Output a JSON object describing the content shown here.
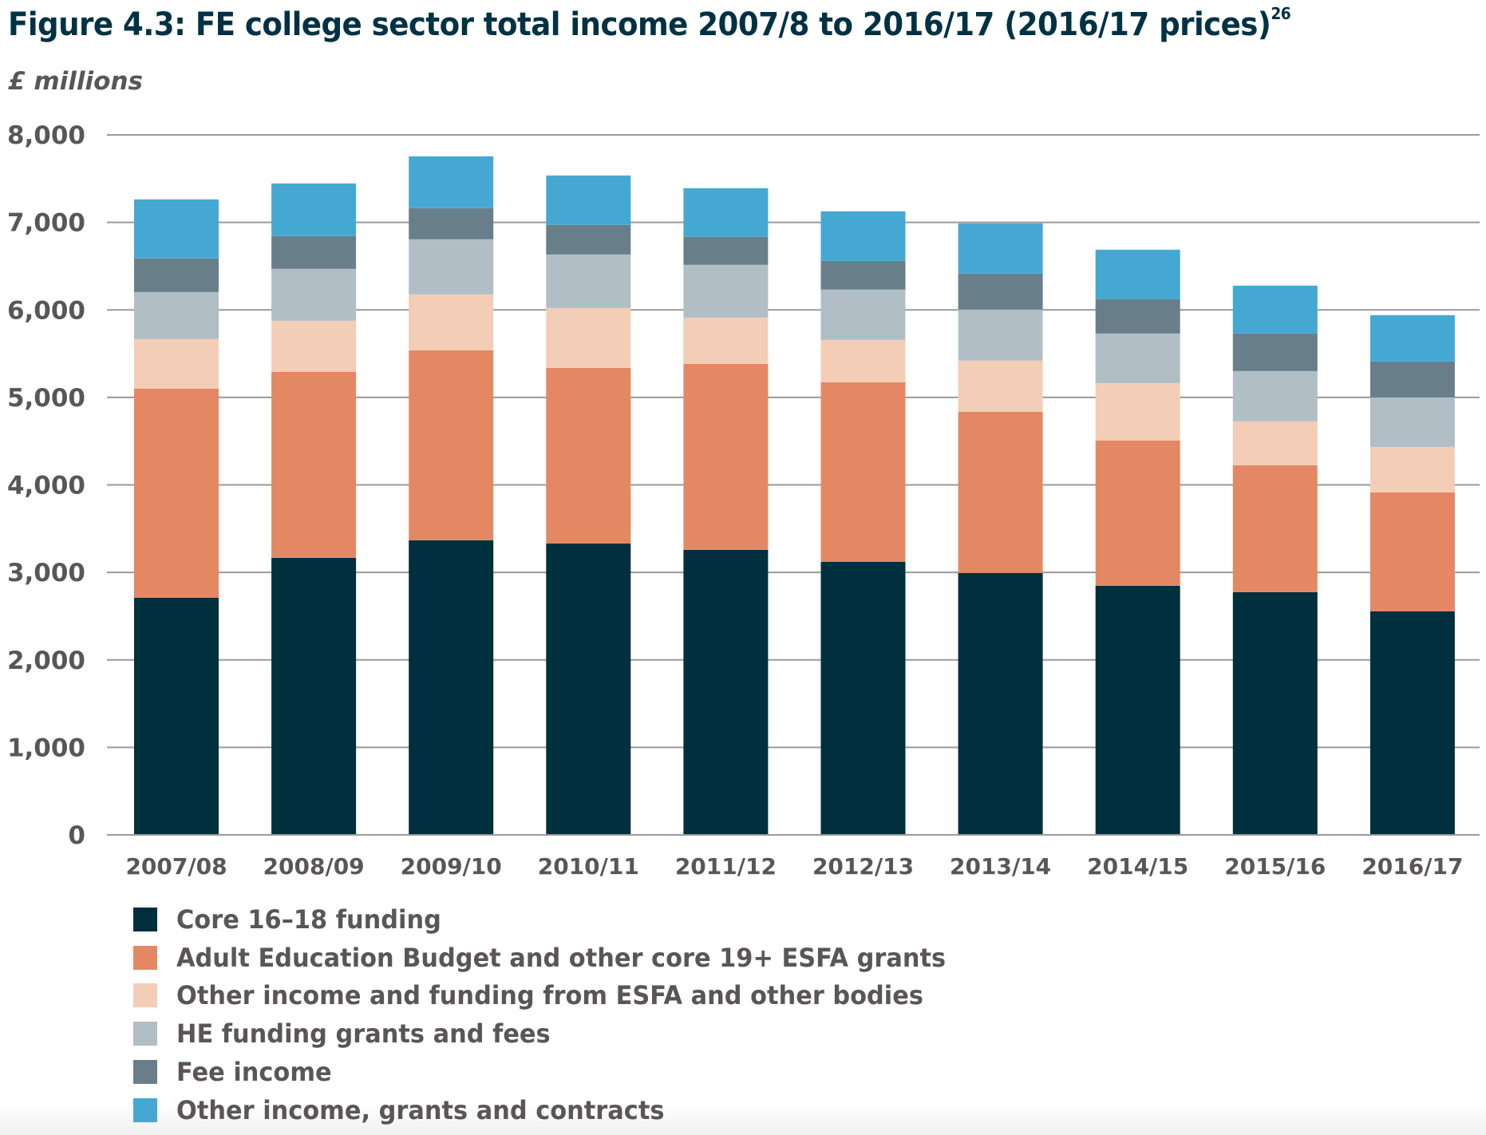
{
  "header": {
    "title": "Figure 4.3: FE college sector total income 2007/8 to 2016/17 (2016/17 prices)",
    "footnote": "26",
    "unit_label": "£ millions"
  },
  "chart_data": {
    "type": "bar",
    "stacked": true,
    "title": "Figure 4.3: FE college sector total income 2007/8 to 2016/17 (2016/17 prices)",
    "xlabel": "",
    "ylabel": "£ millions",
    "ylim": [
      0,
      8000
    ],
    "yticks": [
      0,
      1000,
      2000,
      3000,
      4000,
      5000,
      6000,
      7000,
      8000
    ],
    "ytick_labels": [
      "0",
      "1,000",
      "2,000",
      "3,000",
      "4,000",
      "5,000",
      "6,000",
      "7,000",
      "8,000"
    ],
    "grid": true,
    "legend_position": "bottom",
    "categories": [
      "2007/08",
      "2008/09",
      "2009/10",
      "2010/11",
      "2011/12",
      "2012/13",
      "2013/14",
      "2014/15",
      "2015/16",
      "2016/17"
    ],
    "series": [
      {
        "name": "Core 16–18 funding",
        "color": "#002f3d",
        "values": [
          2710,
          3166,
          3367,
          3330,
          3257,
          3120,
          2993,
          2847,
          2774,
          2555
        ]
      },
      {
        "name": "Adult Education Budget and other core 19+ ESFA grants",
        "color": "#e48864",
        "values": [
          2390,
          2126,
          2171,
          2008,
          2126,
          2053,
          1843,
          1660,
          1450,
          1359
        ]
      },
      {
        "name": "Other income and funding from ESFA and other bodies",
        "color": "#f3cdb6",
        "values": [
          566,
          584,
          639,
          684,
          529,
          484,
          584,
          657,
          502,
          520
        ]
      },
      {
        "name": "HE funding grants and fees",
        "color": "#b1bec6",
        "values": [
          538,
          593,
          630,
          611,
          603,
          575,
          584,
          566,
          575,
          566
        ]
      },
      {
        "name": "Fee income",
        "color": "#687f8a",
        "values": [
          384,
          374,
          355,
          338,
          319,
          328,
          410,
          392,
          429,
          411
        ]
      },
      {
        "name": "Other income, grants and contracts",
        "color": "#45a8d3",
        "values": [
          675,
          602,
          593,
          565,
          557,
          566,
          575,
          566,
          547,
          529
        ]
      }
    ]
  }
}
